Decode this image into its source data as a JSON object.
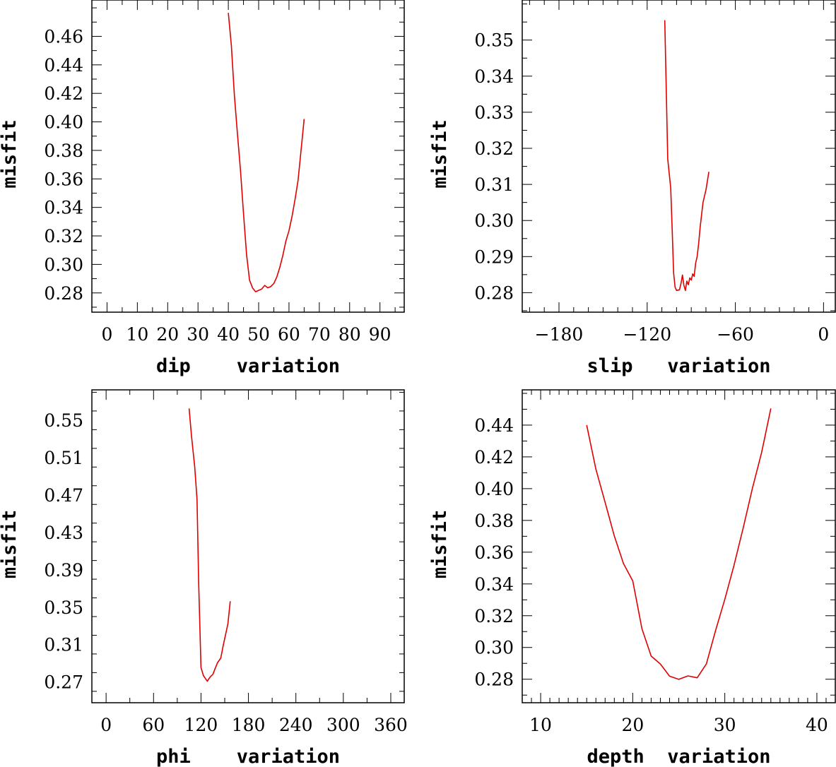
{
  "chart_data": [
    {
      "type": "line",
      "xlabel": "dip    variation",
      "ylabel": "misfit",
      "xlim": [
        -5,
        98
      ],
      "ylim": [
        0.2665,
        0.4855
      ],
      "xticks": [
        0,
        10,
        20,
        30,
        40,
        50,
        60,
        70,
        80,
        90
      ],
      "xtick_labels": [
        "0",
        "10",
        "20",
        "30",
        "40",
        "50",
        "60",
        "70",
        "80",
        "90"
      ],
      "yticks": [
        0.28,
        0.3,
        0.32,
        0.34,
        0.36,
        0.38,
        0.4,
        0.42,
        0.44,
        0.46
      ],
      "ytick_labels": [
        "0.28",
        "0.30",
        "0.32",
        "0.34",
        "0.36",
        "0.38",
        "0.40",
        "0.42",
        "0.44",
        "0.46"
      ],
      "x_minor_step": 5,
      "y_minor_step": 0.01,
      "series": [
        {
          "name": "dip",
          "color": "#e00000",
          "x": [
            40,
            41,
            42,
            43,
            44,
            45,
            46,
            47,
            48,
            49,
            50,
            51,
            52,
            53,
            54,
            55,
            56,
            57,
            58,
            59,
            60,
            61,
            62,
            63,
            64,
            65
          ],
          "y": [
            0.4765,
            0.4535,
            0.4185,
            0.3915,
            0.366,
            0.3355,
            0.307,
            0.289,
            0.2835,
            0.2808,
            0.2818,
            0.2827,
            0.2853,
            0.2836,
            0.2845,
            0.2866,
            0.2913,
            0.2982,
            0.3065,
            0.3165,
            0.3236,
            0.3336,
            0.3456,
            0.3591,
            0.3805,
            0.402
          ]
        }
      ]
    },
    {
      "type": "line",
      "xlabel": "slip   variation",
      "ylabel": "misfit",
      "xlim": [
        -205,
        8
      ],
      "ylim": [
        0.2746,
        0.3611
      ],
      "xticks": [
        -180,
        -120,
        -60,
        0
      ],
      "xtick_labels": [
        "−180",
        "−120",
        "−60",
        "0"
      ],
      "yticks": [
        0.28,
        0.29,
        0.3,
        0.31,
        0.32,
        0.33,
        0.34,
        0.35
      ],
      "ytick_labels": [
        "0.28",
        "0.29",
        "0.30",
        "0.31",
        "0.32",
        "0.33",
        "0.34",
        "0.35"
      ],
      "x_minor_step": 10,
      "y_minor_step": 0.005,
      "series": [
        {
          "name": "slip",
          "color": "#e00000",
          "x": [
            -108,
            -106,
            -104,
            -103,
            -102,
            -101,
            -100,
            -98,
            -97,
            -96,
            -95,
            -94,
            -93,
            -92,
            -91,
            -90,
            -89,
            -88,
            -87,
            -86,
            -85,
            -84,
            -82,
            -80,
            -78
          ],
          "y": [
            0.3555,
            0.317,
            0.309,
            0.298,
            0.2855,
            0.2815,
            0.2806,
            0.2808,
            0.2825,
            0.2849,
            0.282,
            0.2806,
            0.2832,
            0.2822,
            0.2841,
            0.2835,
            0.2852,
            0.2845,
            0.2882,
            0.29,
            0.2935,
            0.298,
            0.305,
            0.3085,
            0.3135
          ]
        }
      ]
    },
    {
      "type": "line",
      "xlabel": "phi    variation",
      "ylabel": "misfit",
      "xlim": [
        -18,
        377
      ],
      "ylim": [
        0.2478,
        0.5826
      ],
      "xticks": [
        0,
        60,
        120,
        180,
        240,
        300,
        360
      ],
      "xtick_labels": [
        "0",
        "60",
        "120",
        "180",
        "240",
        "300",
        "360"
      ],
      "yticks": [
        0.27,
        0.31,
        0.35,
        0.39,
        0.43,
        0.47,
        0.51,
        0.55
      ],
      "ytick_labels": [
        "0.27",
        "0.31",
        "0.35",
        "0.39",
        "0.43",
        "0.47",
        "0.51",
        "0.55"
      ],
      "x_minor_step": 30,
      "y_minor_step": 0.02,
      "series": [
        {
          "name": "phi",
          "color": "#e00000",
          "x": [
            105,
            108,
            112,
            115,
            117,
            120,
            123,
            126,
            128,
            130,
            132,
            135,
            138,
            141,
            145,
            148,
            151,
            154,
            157
          ],
          "y": [
            0.5627,
            0.533,
            0.5005,
            0.4655,
            0.3772,
            0.2855,
            0.2769,
            0.2733,
            0.2708,
            0.2735,
            0.2757,
            0.2781,
            0.2847,
            0.2908,
            0.2955,
            0.3088,
            0.3203,
            0.3323,
            0.3564
          ]
        }
      ]
    },
    {
      "type": "line",
      "xlabel": "depth  variation",
      "ylabel": "misfit",
      "xlim": [
        8,
        42
      ],
      "ylim": [
        0.2652,
        0.4622
      ],
      "xticks": [
        10,
        20,
        30,
        40
      ],
      "xtick_labels": [
        "10",
        "20",
        "30",
        "40"
      ],
      "yticks": [
        0.28,
        0.3,
        0.32,
        0.34,
        0.36,
        0.38,
        0.4,
        0.42,
        0.44
      ],
      "ytick_labels": [
        "0.28",
        "0.30",
        "0.32",
        "0.34",
        "0.36",
        "0.38",
        "0.40",
        "0.42",
        "0.44"
      ],
      "x_minor_step": 1,
      "y_minor_step": 0.01,
      "series": [
        {
          "name": "depth",
          "color": "#e00000",
          "x": [
            15,
            16,
            17,
            18,
            19,
            20,
            21,
            22,
            23,
            24,
            25,
            26,
            27,
            28,
            29,
            30,
            31,
            32,
            33,
            34,
            35
          ],
          "y": [
            0.44,
            0.4123,
            0.3913,
            0.3702,
            0.3528,
            0.3419,
            0.3118,
            0.2946,
            0.2896,
            0.2819,
            0.2799,
            0.2821,
            0.2809,
            0.2897,
            0.3107,
            0.3302,
            0.3518,
            0.3753,
            0.4002,
            0.4229,
            0.4505
          ]
        }
      ]
    }
  ]
}
